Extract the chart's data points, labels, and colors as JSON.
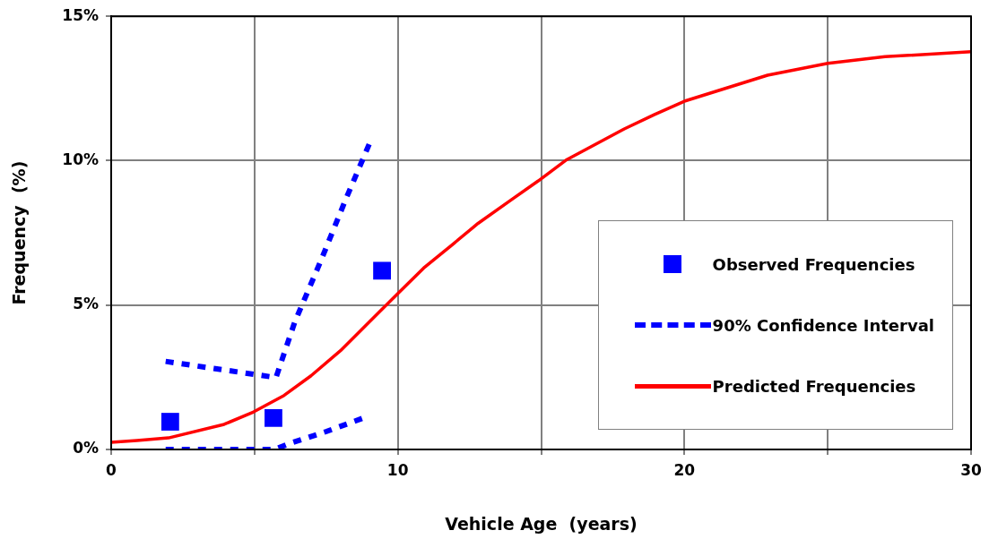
{
  "chart_data": {
    "type": "line",
    "xlabel": "Vehicle Age  (years)",
    "ylabel": "Frequency  (%)",
    "xlim": [
      0,
      30
    ],
    "xticks": [
      0,
      {
        "value": 5,
        "label": null
      },
      10,
      {
        "value": 15,
        "label": null
      },
      20,
      {
        "value": 25,
        "label": null
      },
      30
    ],
    "ylim": [
      0,
      15
    ],
    "yticks": [
      {
        "value": 0,
        "label": "0%"
      },
      {
        "value": 5,
        "label": "5%"
      },
      {
        "value": 10,
        "label": "10%"
      },
      {
        "value": 15,
        "label": "15%"
      }
    ],
    "grid": true,
    "legend": "right",
    "series": [
      {
        "name": "Observed Frequencies",
        "type": "scatter",
        "marker": "square",
        "color": "#0000ff",
        "x": [
          2.06,
          5.66,
          9.45
        ],
        "values": [
          0.96,
          1.09,
          6.19
        ]
      },
      {
        "name": "90% Confidence Interval",
        "type": "line",
        "line_style": "dashed",
        "marker": "none",
        "color": "#0000ff",
        "x": [
          1.9,
          5.75,
          6.4,
          7.3,
          8.2,
          9.1,
          null,
          1.9,
          5.7,
          6.2,
          7.5,
          8.8
        ],
        "values": [
          3.05,
          2.49,
          4.4,
          6.5,
          8.7,
          10.8,
          null,
          0,
          0,
          0.2,
          0.62,
          1.09
        ]
      },
      {
        "name": "Predicted Frequencies",
        "type": "line",
        "line_style": "solid",
        "marker": "none",
        "color": "#ff0000",
        "x": [
          0,
          0.9,
          2.0,
          3.94,
          4.97,
          6.03,
          6.97,
          8.0,
          9.0,
          9.98,
          10.9,
          11.9,
          12.8,
          13.95,
          14.9,
          15.9,
          17.9,
          18.96,
          20,
          22.9,
          25,
          27,
          30
        ],
        "values": [
          0.25,
          0.31,
          0.4,
          0.87,
          1.3,
          1.87,
          2.55,
          3.42,
          4.41,
          5.38,
          6.28,
          7.09,
          7.83,
          8.64,
          9.3,
          10.04,
          11.1,
          11.6,
          12.06,
          12.96,
          13.37,
          13.6,
          13.77
        ]
      }
    ]
  }
}
